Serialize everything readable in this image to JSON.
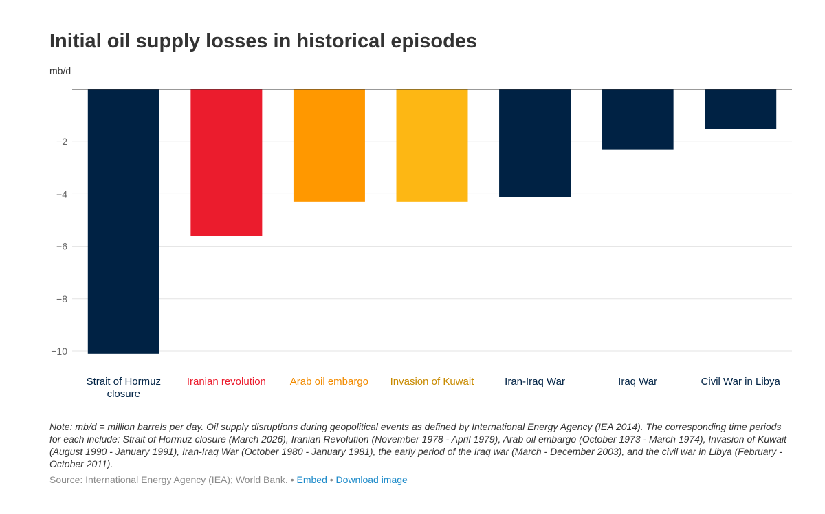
{
  "chart_data": {
    "type": "bar",
    "title": "Initial oil supply losses in historical episodes",
    "ylabel": "mb/d",
    "ylim": [
      -10,
      0
    ],
    "yticks": [
      -2,
      -4,
      -6,
      -8,
      -10
    ],
    "grid": true,
    "categories": [
      "Strait of Hormuz closure",
      "Iranian revolution",
      "Arab oil embargo",
      "Invasion of Kuwait",
      "Iran-Iraq War",
      "Iraq War",
      "Civil War in Libya"
    ],
    "category_lines": [
      [
        "Strait of Hormuz",
        "closure"
      ],
      [
        "Iranian revolution"
      ],
      [
        "Arab oil embargo"
      ],
      [
        "Invasion of Kuwait"
      ],
      [
        "Iran-Iraq War"
      ],
      [
        "Iraq War"
      ],
      [
        "Civil War in Libya"
      ]
    ],
    "values": [
      -10.1,
      -5.6,
      -4.3,
      -4.3,
      -4.1,
      -2.3,
      -1.5
    ],
    "colors": [
      "#002244",
      "#eb1c2d",
      "#ff9800",
      "#fdb714",
      "#002244",
      "#002244",
      "#002244"
    ],
    "label_colors": [
      "#002244",
      "#eb1c2d",
      "#f28b00",
      "#c88a00",
      "#002244",
      "#002244",
      "#002244"
    ]
  },
  "note": "Note: mb/d = million barrels per day. Oil supply disruptions during geopolitical events as defined by International Energy Agency (IEA 2014). The corresponding time periods for each include: Strait of Hormuz closure (March 2026), Iranian Revolution (November 1978 - April 1979), Arab oil embargo (October 1973 - March 1974), Invasion of Kuwait (August 1990 - January 1991), Iran-Iraq War (October 1980 - January 1981), the early period of the Iraq war (March - December 2003), and the civil war in Libya (February - October 2011).",
  "footer": {
    "source": "Source: International Energy Agency (IEA); World Bank.",
    "embed_label": "Embed",
    "download_label": "Download image",
    "link_color": "#1c8ac9"
  }
}
